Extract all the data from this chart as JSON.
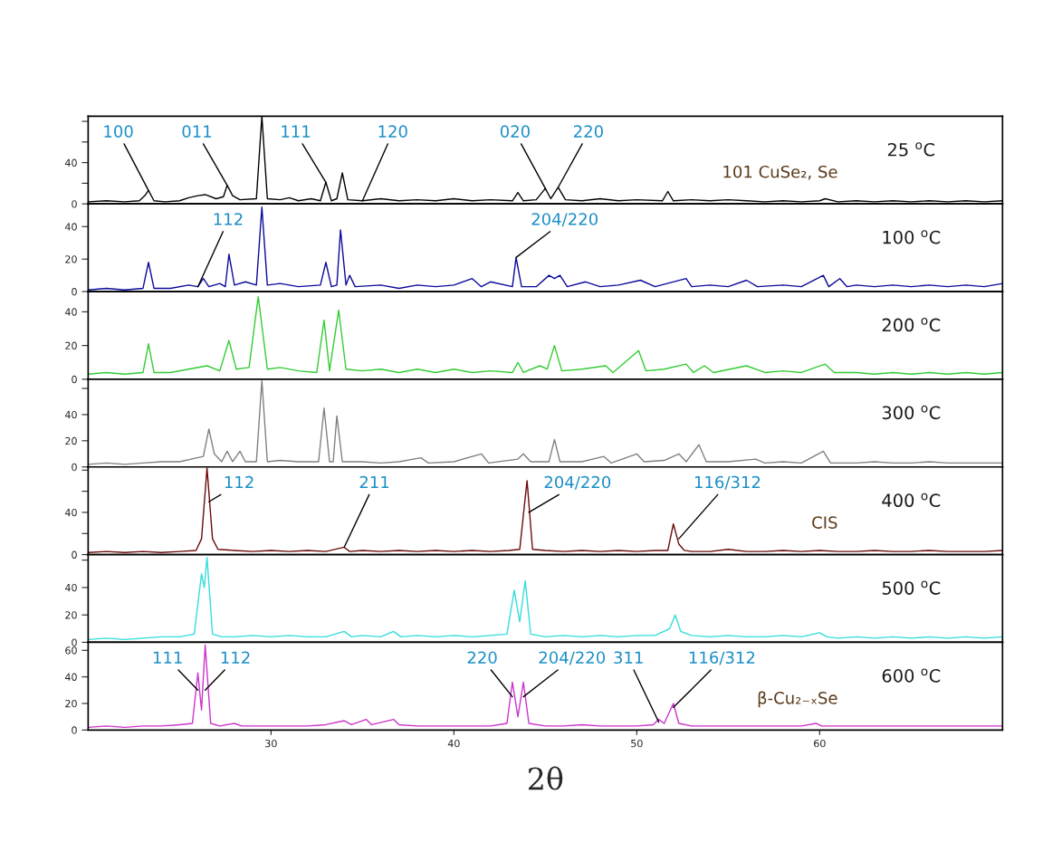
{
  "chart_data": [
    {
      "type": "line",
      "xlim": [
        20,
        70
      ],
      "ylim": [
        0,
        85
      ],
      "yticks": [
        0,
        {
          "value": 20,
          "label": null
        },
        40,
        {
          "value": 60,
          "label": null
        },
        {
          "value": 80,
          "label": null
        }
      ],
      "tick_labels": "y",
      "grid": false,
      "legend": false,
      "series": [
        {
          "name": "25 $^{o}$C",
          "color": "#000000",
          "x": [
            20,
            21,
            22,
            22.8,
            23.1,
            23.3,
            23.6,
            24.2,
            25,
            25.5,
            26,
            26.4,
            27,
            27.4,
            27.6,
            27.9,
            28.3,
            29.2,
            29.5,
            29.8,
            30.5,
            31,
            31.5,
            32.2,
            32.7,
            33.0,
            33.3,
            33.6,
            33.9,
            34.2,
            35,
            36,
            37,
            38,
            39,
            40,
            41,
            42,
            43.2,
            43.5,
            43.8,
            44.5,
            45.0,
            45.3,
            45.7,
            46.1,
            47,
            48,
            49,
            50,
            51.4,
            51.7,
            52,
            53,
            54,
            55,
            56,
            57,
            58,
            59,
            60,
            60.3,
            61,
            62,
            63,
            64,
            65,
            66,
            67,
            68,
            69,
            70
          ],
          "values": [
            2,
            3,
            2,
            3,
            8,
            13,
            3,
            2,
            3,
            6,
            8,
            9,
            5,
            7,
            18,
            8,
            4,
            5,
            85,
            5,
            4,
            6,
            3,
            5,
            3,
            21,
            3,
            5,
            30,
            4,
            3,
            5,
            3,
            4,
            3,
            5,
            3,
            4,
            3,
            11,
            3,
            4,
            15,
            5,
            16,
            4,
            3,
            5,
            3,
            4,
            3,
            12,
            3,
            4,
            3,
            4,
            3,
            2,
            3,
            2,
            3,
            5,
            2,
            3,
            2,
            3,
            2,
            3,
            2,
            3,
            2,
            3
          ]
        }
      ],
      "annotations": [
        {
          "text": "100",
          "x": 23.3,
          "y": 13
        },
        {
          "text": "011",
          "x": 27.6,
          "y": 18
        },
        "101",
        {
          "text": "111",
          "x": 33.0,
          "y": 21
        },
        {
          "text": "120",
          "x": 35,
          "y": 3
        },
        {
          "text": "020",
          "x": 45.0,
          "y": 15
        },
        {
          "text": "220",
          "x": 45.7,
          "y": 16
        },
        "CuSe₂,",
        "Se"
      ]
    },
    {
      "type": "line",
      "xlim": [
        20,
        70
      ],
      "ylim": [
        0,
        54
      ],
      "yticks": [
        0,
        20,
        40
      ],
      "tick_labels": "y",
      "grid": false,
      "legend": false,
      "series": [
        {
          "name": "100 $^{o}$C",
          "color": "#0a0a9a",
          "x": [
            20,
            21,
            22,
            23.0,
            23.3,
            23.6,
            24.5,
            25.5,
            26.0,
            26.3,
            26.6,
            27.2,
            27.5,
            27.7,
            28.0,
            28.6,
            29.2,
            29.5,
            29.8,
            30.5,
            31.5,
            32.7,
            33.0,
            33.3,
            33.6,
            33.8,
            34.1,
            34.3,
            34.6,
            36,
            37,
            38,
            39,
            40,
            41,
            41.5,
            42,
            43.2,
            43.4,
            43.7,
            44.5,
            45.2,
            45.5,
            45.8,
            46.2,
            47.2,
            48,
            49,
            50.2,
            51,
            52.7,
            53,
            54,
            55,
            56,
            56.6,
            58,
            59,
            60.2,
            60.5,
            61.1,
            61.5,
            62,
            63,
            64,
            65,
            66,
            67,
            68,
            69,
            70
          ],
          "values": [
            1,
            2,
            1,
            2,
            18,
            2,
            2,
            4,
            3,
            8,
            3,
            5,
            3,
            23,
            4,
            6,
            4,
            52,
            4,
            5,
            3,
            4,
            18,
            3,
            4,
            38,
            4,
            10,
            3,
            4,
            2,
            4,
            3,
            4,
            8,
            3,
            6,
            3,
            21,
            3,
            3,
            10,
            8,
            10,
            3,
            6,
            3,
            4,
            7,
            3,
            8,
            3,
            4,
            3,
            7,
            3,
            4,
            3,
            10,
            3,
            8,
            3,
            4,
            3,
            4,
            3,
            4,
            3,
            4,
            3,
            5
          ]
        }
      ],
      "annotations": [
        {
          "text": "112",
          "x": 26.0,
          "y": 3
        },
        {
          "text": "204/220",
          "x": 43.4,
          "y": 21
        }
      ]
    },
    {
      "type": "line",
      "xlim": [
        20,
        70
      ],
      "ylim": [
        0,
        52
      ],
      "yticks": [
        0,
        20,
        40
      ],
      "tick_labels": "y",
      "grid": false,
      "legend": false,
      "series": [
        {
          "name": "200 $^{o}$C",
          "color": "#33cc33",
          "x": [
            20,
            21,
            22,
            23.0,
            23.3,
            23.6,
            24.5,
            25.5,
            26.5,
            27.2,
            27.7,
            28.1,
            28.8,
            29.3,
            29.8,
            30.5,
            31.5,
            32.5,
            32.9,
            33.2,
            33.7,
            34.1,
            35,
            36,
            37,
            38,
            39,
            40,
            41,
            42,
            43.2,
            43.5,
            43.8,
            44.7,
            45.1,
            45.5,
            45.9,
            47,
            48.3,
            48.7,
            50.1,
            50.5,
            51.5,
            52.7,
            53.1,
            53.7,
            54.2,
            56,
            57,
            58,
            59,
            60.3,
            60.8,
            62,
            63,
            64,
            65,
            66,
            67,
            68,
            69,
            70
          ],
          "values": [
            3,
            4,
            3,
            4,
            21,
            4,
            4,
            6,
            8,
            5,
            23,
            6,
            7,
            49,
            6,
            7,
            5,
            4,
            35,
            5,
            41,
            6,
            5,
            6,
            4,
            6,
            4,
            6,
            4,
            5,
            4,
            10,
            4,
            8,
            6,
            20,
            5,
            6,
            8,
            4,
            17,
            5,
            6,
            9,
            4,
            8,
            4,
            8,
            4,
            5,
            4,
            9,
            4,
            4,
            3,
            4,
            3,
            4,
            3,
            4,
            3,
            4
          ]
        }
      ]
    },
    {
      "type": "line",
      "xlim": [
        20,
        70
      ],
      "ylim": [
        0,
        67
      ],
      "yticks": [
        0,
        20,
        40,
        {
          "value": 60,
          "label": null
        }
      ],
      "tick_labels": "y",
      "grid": false,
      "legend": false,
      "series": [
        {
          "name": "300 $^{o}$C",
          "color": "#808080",
          "x": [
            20,
            21,
            22,
            23,
            24,
            25,
            26.3,
            26.6,
            26.9,
            27.3,
            27.6,
            27.9,
            28.3,
            28.6,
            29.2,
            29.5,
            29.8,
            30.5,
            31.5,
            32.6,
            32.9,
            33.2,
            33.4,
            33.6,
            33.9,
            35,
            36,
            37,
            38.2,
            38.6,
            40,
            41.5,
            41.9,
            43.5,
            43.8,
            44.2,
            45.2,
            45.5,
            45.8,
            47,
            48.2,
            48.6,
            50,
            50.4,
            51.5,
            52.3,
            52.7,
            53.4,
            53.8,
            55,
            56.5,
            57,
            58,
            59,
            60.2,
            60.6,
            62,
            63,
            64,
            65,
            66,
            67,
            68,
            69,
            70
          ],
          "values": [
            2,
            3,
            2,
            3,
            4,
            4,
            8,
            29,
            10,
            4,
            12,
            4,
            12,
            4,
            4,
            66,
            4,
            5,
            4,
            4,
            45,
            4,
            4,
            39,
            4,
            4,
            3,
            4,
            7,
            3,
            4,
            10,
            3,
            6,
            10,
            4,
            4,
            21,
            4,
            4,
            8,
            3,
            10,
            4,
            5,
            10,
            4,
            17,
            4,
            4,
            6,
            3,
            4,
            3,
            12,
            3,
            3,
            4,
            3,
            3,
            4,
            3,
            3,
            3,
            3
          ]
        }
      ]
    },
    {
      "type": "line",
      "xlim": [
        20,
        70
      ],
      "ylim": [
        0,
        83
      ],
      "yticks": [
        0,
        {
          "value": 20,
          "label": null
        },
        40,
        {
          "value": 60,
          "label": null
        },
        {
          "value": 80,
          "label": null
        }
      ],
      "tick_labels": "y",
      "grid": false,
      "legend": false,
      "series": [
        {
          "name": "400 $^{o}$C",
          "color": "#6b0a0a",
          "x": [
            20,
            21,
            22,
            23,
            24,
            25,
            25.9,
            26.2,
            26.5,
            26.8,
            27.1,
            28,
            29,
            30,
            31,
            32,
            33,
            34.0,
            34.3,
            35,
            36,
            37,
            38,
            39,
            40,
            41,
            42,
            43,
            43.6,
            44.0,
            44.3,
            45,
            46,
            47,
            48,
            49,
            50,
            51,
            51.7,
            52.0,
            52.3,
            52.6,
            53,
            54,
            55,
            56,
            57,
            58,
            59,
            60,
            61,
            62,
            63,
            64,
            65,
            66,
            67,
            68,
            69,
            70
          ],
          "values": [
            2,
            3,
            2,
            3,
            2,
            3,
            4,
            15,
            82,
            15,
            5,
            4,
            3,
            4,
            3,
            4,
            3,
            7,
            3,
            4,
            3,
            4,
            3,
            4,
            3,
            4,
            3,
            4,
            5,
            70,
            5,
            4,
            3,
            4,
            3,
            4,
            3,
            4,
            4,
            29,
            10,
            4,
            3,
            3,
            5,
            3,
            3,
            4,
            3,
            4,
            3,
            3,
            4,
            3,
            3,
            4,
            3,
            3,
            3,
            4
          ]
        }
      ],
      "annotations": [
        "CIS",
        {
          "text": "112",
          "x": 26.6,
          "y": 50
        },
        {
          "text": "211",
          "x": 34.0,
          "y": 7
        },
        {
          "text": "204/220",
          "x": 44.1,
          "y": 40
        },
        {
          "text": "116/312",
          "x": 52.3,
          "y": 15
        }
      ]
    },
    {
      "type": "line",
      "xlim": [
        20,
        70
      ],
      "ylim": [
        0,
        64
      ],
      "yticks": [
        0,
        20,
        40,
        {
          "value": 60,
          "label": null
        }
      ],
      "tick_labels": "y",
      "grid": false,
      "legend": false,
      "series": [
        {
          "name": "500 $^{o}$C",
          "color": "#33dddd",
          "x": [
            20,
            21,
            22,
            23,
            24,
            25,
            25.8,
            26.2,
            26.35,
            26.5,
            26.8,
            27.3,
            28,
            29,
            30,
            31,
            32,
            33,
            34,
            34.4,
            35,
            36,
            36.7,
            37.1,
            38,
            39,
            40,
            41,
            42,
            42.9,
            43.3,
            43.6,
            43.9,
            44.2,
            45,
            46,
            47,
            48,
            49,
            50,
            51,
            51.8,
            52.1,
            52.4,
            53,
            54,
            55,
            56,
            57,
            58,
            59,
            60,
            60.4,
            61,
            62,
            63,
            64,
            65,
            66,
            67,
            68,
            69,
            70
          ],
          "values": [
            2,
            3,
            2,
            3,
            4,
            4,
            6,
            50,
            40,
            62,
            6,
            4,
            4,
            5,
            4,
            5,
            4,
            4,
            8,
            4,
            5,
            4,
            8,
            4,
            5,
            4,
            5,
            4,
            5,
            6,
            38,
            15,
            45,
            6,
            4,
            5,
            4,
            5,
            4,
            5,
            5,
            10,
            20,
            8,
            5,
            4,
            5,
            4,
            4,
            5,
            4,
            7,
            4,
            3,
            4,
            3,
            4,
            3,
            4,
            3,
            4,
            3,
            4
          ]
        }
      ]
    },
    {
      "type": "line",
      "xlim": [
        20,
        70
      ],
      "xticks": [
        30,
        40,
        50,
        60
      ],
      "xlabel": "2θ",
      "ylim": [
        0,
        66
      ],
      "yticks": [
        0,
        20,
        40,
        60
      ],
      "grid": false,
      "legend": false,
      "series": [
        {
          "name": "600 $^{o}$C",
          "color": "#cc33cc",
          "x": [
            20,
            21,
            22,
            23,
            24,
            25,
            25.7,
            26.0,
            26.2,
            26.4,
            26.7,
            27.2,
            28,
            28.4,
            29,
            30,
            31,
            32,
            33,
            34,
            34.4,
            35.2,
            35.5,
            36.7,
            37,
            38,
            39,
            40,
            41,
            42,
            42.9,
            43.2,
            43.5,
            43.8,
            44.1,
            45,
            46,
            47,
            48,
            49,
            50,
            50.9,
            51.2,
            51.5,
            52.0,
            52.3,
            53,
            54,
            55,
            56,
            57,
            58,
            59,
            59.8,
            60.1,
            61,
            62,
            63,
            64,
            65,
            66,
            67,
            68,
            69,
            70
          ],
          "values": [
            2,
            3,
            2,
            3,
            3,
            4,
            5,
            43,
            15,
            64,
            5,
            3,
            5,
            3,
            3,
            3,
            3,
            3,
            4,
            7,
            4,
            8,
            4,
            8,
            4,
            3,
            3,
            3,
            3,
            3,
            5,
            36,
            10,
            36,
            5,
            3,
            3,
            4,
            3,
            3,
            3,
            4,
            8,
            5,
            20,
            5,
            3,
            3,
            3,
            3,
            3,
            3,
            3,
            5,
            3,
            3,
            3,
            3,
            3,
            3,
            3,
            3,
            3,
            3,
            3
          ]
        }
      ],
      "annotations": [
        {
          "text": "111",
          "x": 26.0,
          "y": 30
        },
        {
          "text": "112",
          "x": 26.4,
          "y": 30
        },
        "β-Cu₂₋ₓSe",
        {
          "text": "220",
          "x": 43.2,
          "y": 25
        },
        {
          "text": "204/220",
          "x": 43.8,
          "y": 25
        },
        {
          "text": "311",
          "x": 51.2,
          "y": 6
        },
        {
          "text": "116/312",
          "x": 52.0,
          "y": 17
        }
      ]
    }
  ]
}
